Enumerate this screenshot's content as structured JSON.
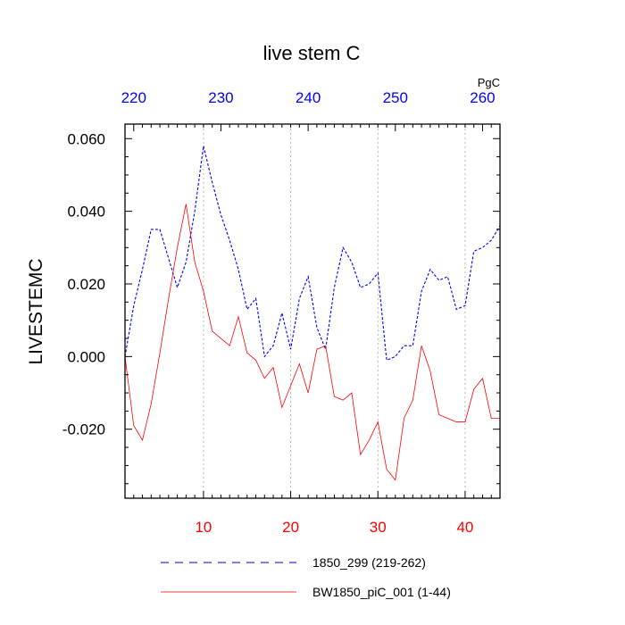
{
  "chart_data": {
    "type": "line",
    "title": "live stem C",
    "ylabel": "LIVESTEMC",
    "units": "PgC",
    "xlim": [
      1,
      44
    ],
    "ylim": [
      -0.039,
      0.064
    ],
    "top_xlim": [
      219,
      262
    ],
    "bottom_ticks": [
      10,
      20,
      30,
      40
    ],
    "bottom_tick_labels": [
      "10",
      "20",
      "30",
      "40"
    ],
    "top_ticks": [
      220,
      230,
      240,
      250,
      260
    ],
    "top_tick_labels": [
      "220",
      "230",
      "240",
      "250",
      "260"
    ],
    "y_ticks": [
      -0.02,
      0.0,
      0.02,
      0.04,
      0.06
    ],
    "y_tick_labels": [
      "-0.020",
      "0.000",
      "0.020",
      "0.040",
      "0.060"
    ],
    "grid": "vertical dotted at major x ticks",
    "colors": {
      "blue": "#0000ff",
      "red": "#ff0000",
      "grid": "#aaaaaa"
    },
    "series": [
      {
        "name": "1850_299 (219-262)",
        "axis": "top",
        "style": "dashed",
        "color": "#0000ff",
        "x": [
          219,
          220,
          221,
          222,
          223,
          224,
          225,
          226,
          227,
          228,
          229,
          230,
          231,
          232,
          233,
          234,
          235,
          236,
          237,
          238,
          239,
          240,
          241,
          242,
          243,
          244,
          245,
          246,
          247,
          248,
          249,
          250,
          251,
          252,
          253,
          254,
          255,
          256,
          257,
          258,
          259,
          260,
          261,
          262
        ],
        "values": [
          0.0,
          0.014,
          0.024,
          0.035,
          0.035,
          0.027,
          0.019,
          0.026,
          0.04,
          0.058,
          0.048,
          0.039,
          0.032,
          0.024,
          0.013,
          0.016,
          0.0,
          0.003,
          0.012,
          0.002,
          0.016,
          0.022,
          0.008,
          0.002,
          0.019,
          0.03,
          0.026,
          0.019,
          0.02,
          0.023,
          -0.001,
          0.0,
          0.003,
          0.003,
          0.018,
          0.024,
          0.021,
          0.022,
          0.013,
          0.014,
          0.029,
          0.03,
          0.032,
          0.036
        ]
      },
      {
        "name": "BW1850_piC_001 (1-44)",
        "axis": "bottom",
        "style": "solid",
        "color": "#ff0000",
        "x": [
          1,
          2,
          3,
          4,
          5,
          6,
          7,
          8,
          9,
          10,
          11,
          12,
          13,
          14,
          15,
          16,
          17,
          18,
          19,
          20,
          21,
          22,
          23,
          24,
          25,
          26,
          27,
          28,
          29,
          30,
          31,
          32,
          33,
          34,
          35,
          36,
          37,
          38,
          39,
          40,
          41,
          42,
          43,
          44
        ],
        "values": [
          0.0,
          -0.019,
          -0.023,
          -0.013,
          0.001,
          0.016,
          0.03,
          0.042,
          0.026,
          0.018,
          0.007,
          0.005,
          0.003,
          0.011,
          0.001,
          -0.001,
          -0.006,
          -0.003,
          -0.014,
          -0.008,
          -0.002,
          -0.01,
          0.002,
          0.003,
          -0.011,
          -0.012,
          -0.01,
          -0.027,
          -0.023,
          -0.018,
          -0.031,
          -0.034,
          -0.017,
          -0.012,
          0.003,
          -0.004,
          -0.016,
          -0.017,
          -0.018,
          -0.018,
          -0.009,
          -0.006,
          -0.017,
          -0.017
        ]
      }
    ]
  }
}
